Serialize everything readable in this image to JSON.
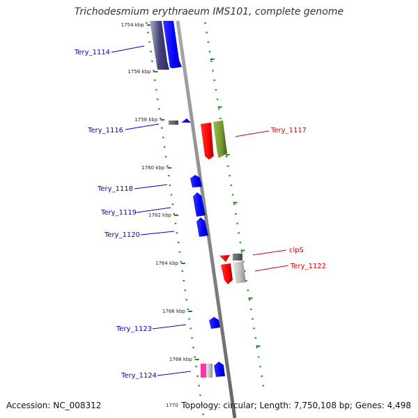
{
  "title": "Trichodesmium erythraeum IMS101, complete genome",
  "accession": "Accession: NC_008312",
  "topology": "Topology: circular; Length: 7,750,108 bp; Genes: 4,498",
  "end_tick": "1770",
  "ticks": [
    {
      "label": "1754 kbp",
      "y": 35
    },
    {
      "label": "1756 kbp",
      "y": 102
    },
    {
      "label": "1758 kbp",
      "y": 171
    },
    {
      "label": "1760 kbp",
      "y": 240
    },
    {
      "label": "1762 kbp",
      "y": 308
    },
    {
      "label": "1764 kbp",
      "y": 377
    },
    {
      "label": "1766 kbp",
      "y": 446
    },
    {
      "label": "1768 kbp",
      "y": 515
    }
  ],
  "genes_minus": [
    {
      "name": "Tery_1114",
      "color": "#0000cc",
      "y1": 30,
      "y2": 100
    },
    {
      "name": "Tery_1116",
      "color": "#0000cc",
      "y1": 170,
      "y2": 177
    },
    {
      "name": "Tery_1118",
      "color": "#0000cc",
      "y1": 251,
      "y2": 268
    },
    {
      "name": "Tery_1119",
      "color": "#0000cc",
      "y1": 276,
      "y2": 311
    },
    {
      "name": "Tery_1120",
      "color": "#0000cc",
      "y1": 312,
      "y2": 340
    },
    {
      "name": "Tery_1123",
      "color": "#0000cc",
      "y1": 455,
      "y2": 472
    },
    {
      "name": "Tery_1124",
      "color": "#0000cc",
      "y1": 520,
      "y2": 541
    }
  ],
  "genes_plus": [
    {
      "name": "Tery_1117",
      "color": "#cc0000",
      "y1": 174,
      "y2": 228
    },
    {
      "name": "clpS",
      "color": "#cc0000",
      "y1": 366,
      "y2": 376
    },
    {
      "name": "Tery_1122",
      "color": "#cc0000",
      "y1": 377,
      "y2": 407
    }
  ],
  "colors": {
    "backbone": "#888888",
    "tick_dots": "#228822",
    "minus_label": "#0000cc",
    "plus_label": "#cc0000",
    "green_cds": "#779933",
    "pink_cds": "#ff33aa",
    "dark_cds": "#555577"
  }
}
